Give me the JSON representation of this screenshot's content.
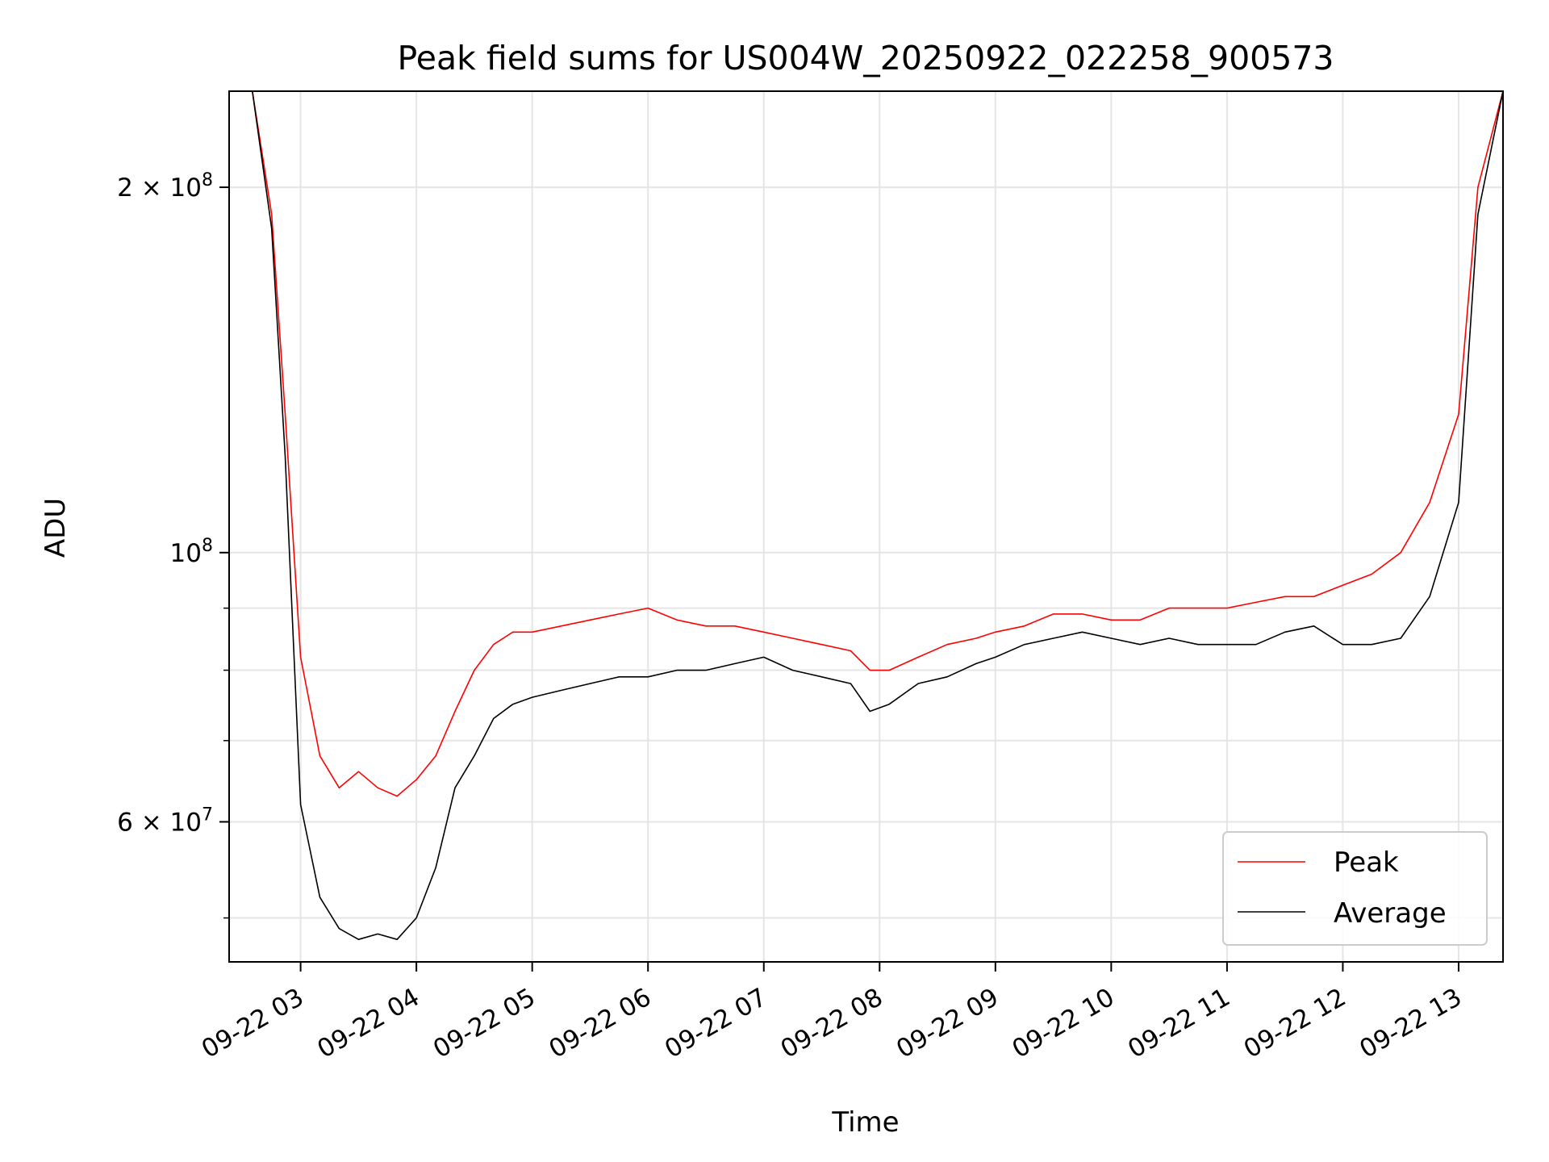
{
  "chart_data": {
    "type": "line",
    "title": "Peak field sums for US004W_20250922_022258_900573",
    "xlabel": "Time",
    "ylabel": "ADU",
    "yscale": "log",
    "ylim": [
      46000000,
      240000000
    ],
    "xlim": [
      "2025-09-22 02:22:58",
      "2025-09-22 13:23:00"
    ],
    "grid": true,
    "legend_position": "lower right",
    "x_ticks": [
      {
        "t": "2025-09-22 03:00",
        "label": "09-22 03"
      },
      {
        "t": "2025-09-22 04:00",
        "label": "09-22 04"
      },
      {
        "t": "2025-09-22 05:00",
        "label": "09-22 05"
      },
      {
        "t": "2025-09-22 06:00",
        "label": "09-22 06"
      },
      {
        "t": "2025-09-22 07:00",
        "label": "09-22 07"
      },
      {
        "t": "2025-09-22 08:00",
        "label": "09-22 08"
      },
      {
        "t": "2025-09-22 09:00",
        "label": "09-22 09"
      },
      {
        "t": "2025-09-22 10:00",
        "label": "09-22 10"
      },
      {
        "t": "2025-09-22 11:00",
        "label": "09-22 11"
      },
      {
        "t": "2025-09-22 12:00",
        "label": "09-22 12"
      },
      {
        "t": "2025-09-22 13:00",
        "label": "09-22 13"
      }
    ],
    "y_ticks_major": [
      {
        "v": 100000000,
        "base": "10",
        "exp": "8",
        "coef": ""
      },
      {
        "v": 200000000,
        "base": "10",
        "exp": "8",
        "coef": "2"
      },
      {
        "v": 60000000,
        "base": "10",
        "exp": "7",
        "coef": "6"
      }
    ],
    "y_ticks_minor": [
      50000000,
      70000000,
      80000000,
      90000000
    ],
    "series": [
      {
        "name": "Peak",
        "color": "#ff0000",
        "x": [
          "2025-09-22 02:22:58",
          "2025-09-22 02:35",
          "2025-09-22 02:45",
          "2025-09-22 02:52",
          "2025-09-22 03:00",
          "2025-09-22 03:10",
          "2025-09-22 03:20",
          "2025-09-22 03:30",
          "2025-09-22 03:40",
          "2025-09-22 03:50",
          "2025-09-22 04:00",
          "2025-09-22 04:10",
          "2025-09-22 04:20",
          "2025-09-22 04:30",
          "2025-09-22 04:40",
          "2025-09-22 04:50",
          "2025-09-22 05:00",
          "2025-09-22 05:15",
          "2025-09-22 05:30",
          "2025-09-22 05:45",
          "2025-09-22 06:00",
          "2025-09-22 06:15",
          "2025-09-22 06:30",
          "2025-09-22 06:45",
          "2025-09-22 07:00",
          "2025-09-22 07:15",
          "2025-09-22 07:30",
          "2025-09-22 07:45",
          "2025-09-22 07:55",
          "2025-09-22 08:05",
          "2025-09-22 08:20",
          "2025-09-22 08:35",
          "2025-09-22 08:50",
          "2025-09-22 09:00",
          "2025-09-22 09:15",
          "2025-09-22 09:30",
          "2025-09-22 09:45",
          "2025-09-22 10:00",
          "2025-09-22 10:15",
          "2025-09-22 10:30",
          "2025-09-22 10:45",
          "2025-09-22 11:00",
          "2025-09-22 11:15",
          "2025-09-22 11:30",
          "2025-09-22 11:45",
          "2025-09-22 12:00",
          "2025-09-22 12:15",
          "2025-09-22 12:30",
          "2025-09-22 12:45",
          "2025-09-22 13:00",
          "2025-09-22 13:10",
          "2025-09-22 13:23:00"
        ],
        "y": [
          240000000,
          240000000,
          190000000,
          130000000,
          82000000,
          68000000,
          64000000,
          66000000,
          64000000,
          63000000,
          65000000,
          68000000,
          74000000,
          80000000,
          84000000,
          86000000,
          86000000,
          87000000,
          88000000,
          89000000,
          90000000,
          88000000,
          87000000,
          87000000,
          86000000,
          85000000,
          84000000,
          83000000,
          80000000,
          80000000,
          82000000,
          84000000,
          85000000,
          86000000,
          87000000,
          89000000,
          89000000,
          88000000,
          88000000,
          90000000,
          90000000,
          90000000,
          91000000,
          92000000,
          92000000,
          94000000,
          96000000,
          100000000,
          110000000,
          130000000,
          200000000,
          240000000
        ]
      },
      {
        "name": "Average",
        "color": "#000000",
        "x": [
          "2025-09-22 02:22:58",
          "2025-09-22 02:35",
          "2025-09-22 02:45",
          "2025-09-22 02:52",
          "2025-09-22 03:00",
          "2025-09-22 03:10",
          "2025-09-22 03:20",
          "2025-09-22 03:30",
          "2025-09-22 03:40",
          "2025-09-22 03:50",
          "2025-09-22 04:00",
          "2025-09-22 04:10",
          "2025-09-22 04:20",
          "2025-09-22 04:30",
          "2025-09-22 04:40",
          "2025-09-22 04:50",
          "2025-09-22 05:00",
          "2025-09-22 05:15",
          "2025-09-22 05:30",
          "2025-09-22 05:45",
          "2025-09-22 06:00",
          "2025-09-22 06:15",
          "2025-09-22 06:30",
          "2025-09-22 06:45",
          "2025-09-22 07:00",
          "2025-09-22 07:15",
          "2025-09-22 07:30",
          "2025-09-22 07:45",
          "2025-09-22 07:55",
          "2025-09-22 08:05",
          "2025-09-22 08:20",
          "2025-09-22 08:35",
          "2025-09-22 08:50",
          "2025-09-22 09:00",
          "2025-09-22 09:15",
          "2025-09-22 09:30",
          "2025-09-22 09:45",
          "2025-09-22 10:00",
          "2025-09-22 10:15",
          "2025-09-22 10:30",
          "2025-09-22 10:45",
          "2025-09-22 11:00",
          "2025-09-22 11:15",
          "2025-09-22 11:30",
          "2025-09-22 11:45",
          "2025-09-22 12:00",
          "2025-09-22 12:15",
          "2025-09-22 12:30",
          "2025-09-22 12:45",
          "2025-09-22 13:00",
          "2025-09-22 13:10",
          "2025-09-22 13:23:00"
        ],
        "y": [
          240000000,
          240000000,
          185000000,
          120000000,
          62000000,
          52000000,
          49000000,
          48000000,
          48500000,
          48000000,
          50000000,
          55000000,
          64000000,
          68000000,
          73000000,
          75000000,
          76000000,
          77000000,
          78000000,
          79000000,
          79000000,
          80000000,
          80000000,
          81000000,
          82000000,
          80000000,
          79000000,
          78000000,
          74000000,
          75000000,
          78000000,
          79000000,
          81000000,
          82000000,
          84000000,
          85000000,
          86000000,
          85000000,
          84000000,
          85000000,
          84000000,
          84000000,
          84000000,
          86000000,
          87000000,
          84000000,
          84000000,
          85000000,
          92000000,
          110000000,
          190000000,
          240000000
        ]
      }
    ]
  }
}
